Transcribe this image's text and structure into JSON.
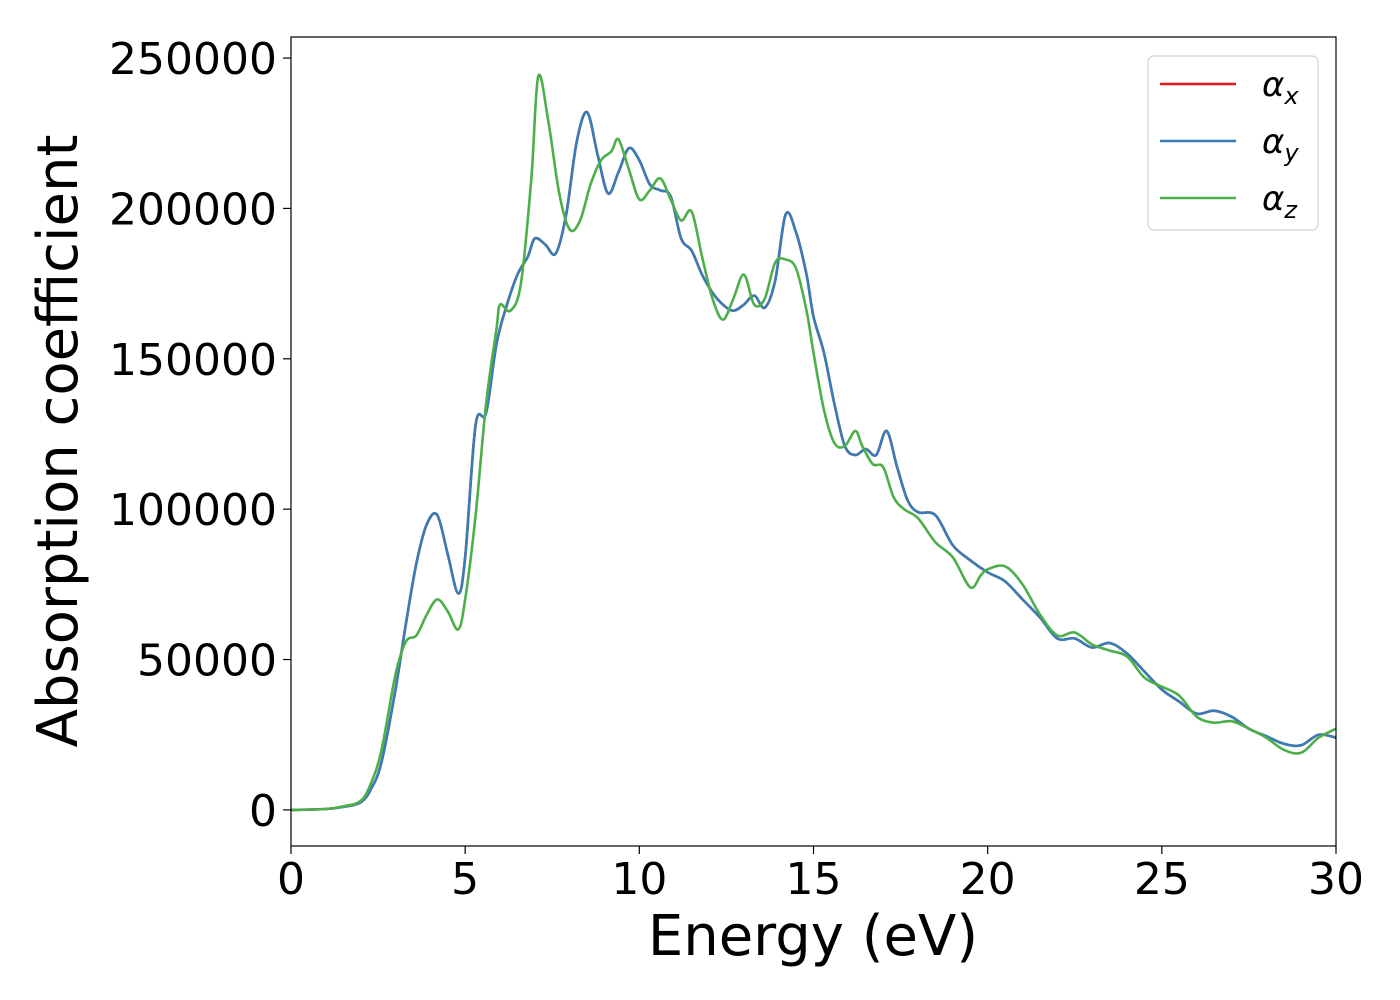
{
  "chart_data": {
    "type": "line",
    "xlabel": "Energy (eV)",
    "ylabel": "Absorption coefficient",
    "xlim": [
      0,
      30
    ],
    "ylim": [
      -12000,
      257000
    ],
    "xticks": [
      0,
      5,
      10,
      15,
      20,
      25,
      30
    ],
    "xtick_labels": [
      "0",
      "5",
      "10",
      "15",
      "20",
      "25",
      "30"
    ],
    "yticks": [
      0,
      50000,
      100000,
      150000,
      200000,
      250000
    ],
    "ytick_labels": [
      "0",
      "50000",
      "100000",
      "150000",
      "200000",
      "250000"
    ],
    "grid": false,
    "legend_position": "top-right",
    "series": [
      {
        "name": "α",
        "name_subscript": "x",
        "color": "#e41a1c",
        "x": [
          0,
          1,
          1.5,
          2,
          2.3,
          2.6,
          3,
          3.3,
          3.6,
          3.9,
          4.2,
          4.5,
          4.8,
          5.0,
          5.3,
          5.6,
          5.9,
          6.2,
          6.5,
          6.8,
          7.0,
          7.3,
          7.6,
          7.9,
          8.2,
          8.5,
          8.8,
          9.1,
          9.4,
          9.7,
          10.0,
          10.3,
          10.6,
          10.9,
          11.2,
          11.5,
          11.8,
          12.1,
          12.4,
          12.7,
          13.0,
          13.3,
          13.6,
          13.9,
          14.2,
          14.5,
          14.8,
          15.0,
          15.3,
          15.6,
          15.9,
          16.2,
          16.5,
          16.8,
          17.1,
          17.4,
          17.7,
          18.0,
          18.5,
          19.0,
          19.5,
          20.0,
          20.5,
          21.0,
          21.5,
          22.0,
          22.5,
          23.0,
          23.5,
          24.0,
          24.5,
          25.0,
          25.5,
          26.0,
          26.5,
          27.0,
          27.5,
          28.0,
          28.5,
          29.0,
          29.5,
          30.0
        ],
        "y": [
          0,
          300,
          1000,
          2500,
          7000,
          16000,
          40000,
          62000,
          82000,
          95000,
          98000,
          85000,
          72000,
          84000,
          128000,
          132000,
          155000,
          168000,
          178000,
          184000,
          190000,
          188000,
          185000,
          198000,
          222000,
          232000,
          218000,
          205000,
          212000,
          220000,
          216000,
          208000,
          206000,
          204000,
          190000,
          186000,
          178000,
          172000,
          168000,
          166000,
          168000,
          171000,
          167000,
          176000,
          198000,
          192000,
          178000,
          164000,
          152000,
          135000,
          121000,
          118000,
          120000,
          118000,
          126000,
          114000,
          103000,
          99000,
          98000,
          88000,
          83000,
          79000,
          76000,
          70000,
          64000,
          57000,
          57000,
          54000,
          55500,
          52000,
          46000,
          40000,
          36000,
          32000,
          33000,
          31000,
          27000,
          24500,
          22000,
          21500,
          25000,
          24000
        ]
      },
      {
        "name": "α",
        "name_subscript": "y",
        "color": "#377eb8",
        "x": [
          0,
          1,
          1.5,
          2,
          2.3,
          2.6,
          3,
          3.3,
          3.6,
          3.9,
          4.2,
          4.5,
          4.8,
          5.0,
          5.3,
          5.6,
          5.9,
          6.2,
          6.5,
          6.8,
          7.0,
          7.3,
          7.6,
          7.9,
          8.2,
          8.5,
          8.8,
          9.1,
          9.4,
          9.7,
          10.0,
          10.3,
          10.6,
          10.9,
          11.2,
          11.5,
          11.8,
          12.1,
          12.4,
          12.7,
          13.0,
          13.3,
          13.6,
          13.9,
          14.2,
          14.5,
          14.8,
          15.0,
          15.3,
          15.6,
          15.9,
          16.2,
          16.5,
          16.8,
          17.1,
          17.4,
          17.7,
          18.0,
          18.5,
          19.0,
          19.5,
          20.0,
          20.5,
          21.0,
          21.5,
          22.0,
          22.5,
          23.0,
          23.5,
          24.0,
          24.5,
          25.0,
          25.5,
          26.0,
          26.5,
          27.0,
          27.5,
          28.0,
          28.5,
          29.0,
          29.5,
          30.0
        ],
        "y": [
          0,
          300,
          1000,
          2500,
          7000,
          16000,
          40000,
          62000,
          82000,
          95000,
          98000,
          85000,
          72000,
          84000,
          128000,
          132000,
          155000,
          168000,
          178000,
          184000,
          190000,
          188000,
          185000,
          198000,
          222000,
          232000,
          218000,
          205000,
          212000,
          220000,
          216000,
          208000,
          206000,
          204000,
          190000,
          186000,
          178000,
          172000,
          168000,
          166000,
          168000,
          171000,
          167000,
          176000,
          198000,
          192000,
          178000,
          164000,
          152000,
          135000,
          121000,
          118000,
          120000,
          118000,
          126000,
          114000,
          103000,
          99000,
          98000,
          88000,
          83000,
          79000,
          76000,
          70000,
          64000,
          57000,
          57000,
          54000,
          55500,
          52000,
          46000,
          40000,
          36000,
          32000,
          33000,
          31000,
          27000,
          24500,
          22000,
          21500,
          25000,
          24000
        ]
      },
      {
        "name": "α",
        "name_subscript": "z",
        "color": "#4daf4a",
        "x": [
          0,
          1,
          1.5,
          2,
          2.3,
          2.6,
          3,
          3.3,
          3.6,
          3.9,
          4.2,
          4.5,
          4.8,
          5.0,
          5.3,
          5.6,
          5.9,
          6.0,
          6.3,
          6.6,
          6.9,
          7.1,
          7.4,
          7.7,
          8.0,
          8.3,
          8.6,
          8.9,
          9.2,
          9.4,
          9.7,
          10.0,
          10.3,
          10.6,
          10.9,
          11.2,
          11.5,
          11.8,
          12.1,
          12.4,
          12.7,
          13.0,
          13.3,
          13.6,
          13.9,
          14.2,
          14.5,
          14.8,
          15.0,
          15.3,
          15.6,
          15.9,
          16.2,
          16.4,
          16.7,
          17.0,
          17.3,
          17.6,
          18.0,
          18.5,
          19.0,
          19.5,
          19.8,
          20.0,
          20.5,
          21.0,
          21.5,
          22.0,
          22.5,
          23.0,
          23.5,
          24.0,
          24.5,
          25.0,
          25.5,
          26.0,
          26.5,
          27.0,
          27.5,
          28.0,
          28.5,
          29.0,
          29.5,
          30.0
        ],
        "y": [
          0,
          300,
          1200,
          3000,
          9000,
          20000,
          45000,
          56000,
          58000,
          65000,
          70000,
          66000,
          60000,
          70000,
          98000,
          135000,
          160000,
          168000,
          166000,
          175000,
          210000,
          244000,
          228000,
          205000,
          193000,
          196000,
          208000,
          216000,
          219000,
          223000,
          213000,
          203000,
          206000,
          210000,
          203000,
          196000,
          199000,
          184000,
          170000,
          163000,
          170000,
          178000,
          168000,
          170000,
          182000,
          183000,
          180000,
          166000,
          152000,
          133000,
          122000,
          121000,
          126000,
          121000,
          115000,
          114000,
          104000,
          100000,
          97000,
          89000,
          84000,
          74000,
          78000,
          80000,
          81000,
          75000,
          65000,
          58000,
          59000,
          55000,
          53000,
          51000,
          44000,
          41000,
          38000,
          31000,
          29000,
          29500,
          27000,
          24000,
          20000,
          19000,
          24000,
          27000
        ]
      }
    ]
  }
}
